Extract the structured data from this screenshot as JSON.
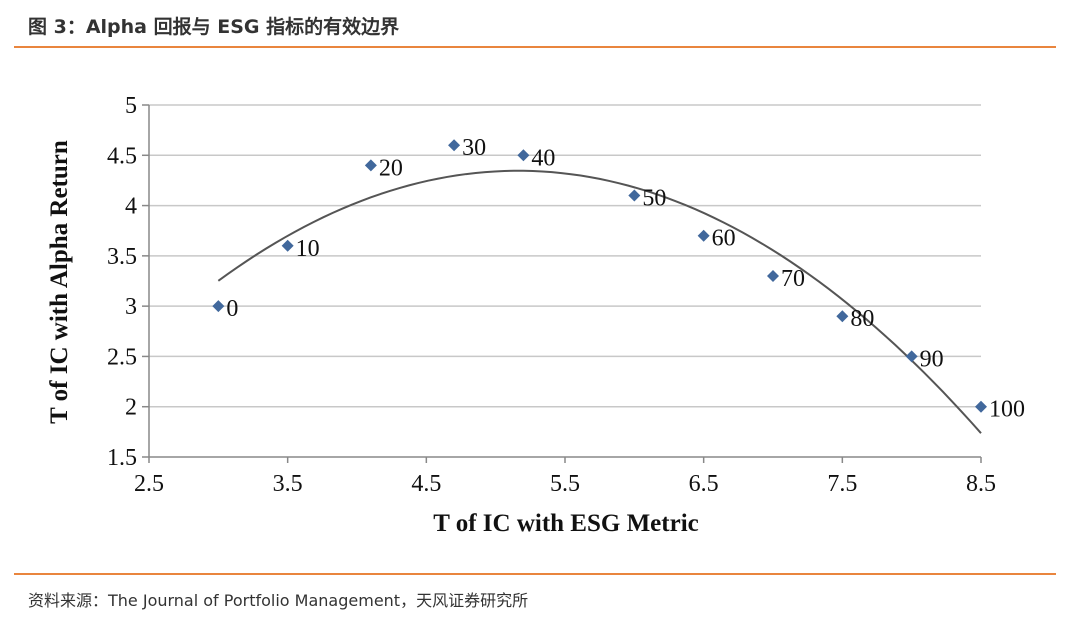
{
  "header": {
    "title": "图 3：Alpha 回报与 ESG 指标的有效边界"
  },
  "footer": {
    "source": "资料来源：The Journal of Portfolio Management，天风证券研究所"
  },
  "colors": {
    "accent_rule": "#e9853e",
    "marker": "#41689c",
    "curve": "#555555",
    "grid": "#c8c8c8"
  },
  "chart_data": {
    "type": "scatter",
    "xlabel": "T of IC with ESG Metric",
    "ylabel": "T of IC with Alpha Return",
    "xlim": [
      2.5,
      8.5
    ],
    "ylim": [
      1.5,
      5
    ],
    "x_ticks": [
      "2.5",
      "3.5",
      "4.5",
      "5.5",
      "6.5",
      "7.5",
      "8.5"
    ],
    "y_ticks": [
      "1.5",
      "2",
      "2.5",
      "3",
      "3.5",
      "4",
      "4.5",
      "5"
    ],
    "grid": "horizontal",
    "series": [
      {
        "points": [
          {
            "x": 3.0,
            "y": 3.0,
            "label": "0"
          },
          {
            "x": 3.5,
            "y": 3.6,
            "label": "10"
          },
          {
            "x": 4.1,
            "y": 4.4,
            "label": "20"
          },
          {
            "x": 4.7,
            "y": 4.6,
            "label": "30"
          },
          {
            "x": 5.2,
            "y": 4.5,
            "label": "40"
          },
          {
            "x": 6.0,
            "y": 4.1,
            "label": "50"
          },
          {
            "x": 6.5,
            "y": 3.7,
            "label": "60"
          },
          {
            "x": 7.0,
            "y": 3.3,
            "label": "70"
          },
          {
            "x": 7.5,
            "y": 2.9,
            "label": "80"
          },
          {
            "x": 8.0,
            "y": 2.5,
            "label": "90"
          },
          {
            "x": 8.5,
            "y": 2.0,
            "label": "100"
          }
        ]
      }
    ],
    "trendline": true
  }
}
